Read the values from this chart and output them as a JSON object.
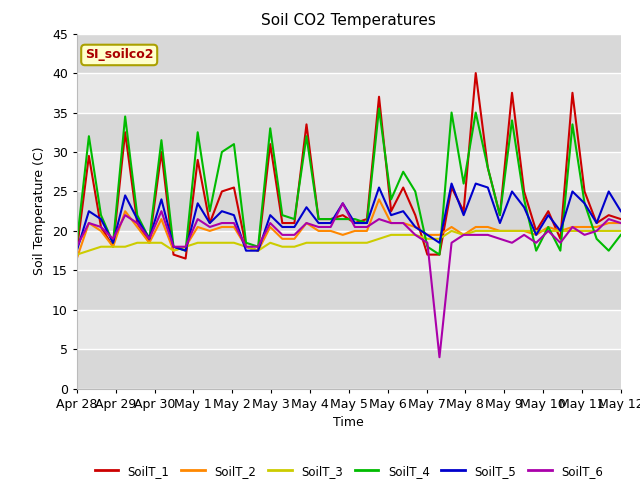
{
  "title": "Soil CO2 Temperatures",
  "xlabel": "Time",
  "ylabel": "Soil Temperature (C)",
  "ylim": [
    0,
    45
  ],
  "annotation_text": "SI_soilco2",
  "background_color": "#ffffff",
  "plot_bg_color": "#d8d8d8",
  "band_light_color": "#e8e8e8",
  "grid_line_color": "#ffffff",
  "series_colors": {
    "SoilT_1": "#cc0000",
    "SoilT_2": "#ff8800",
    "SoilT_3": "#cccc00",
    "SoilT_4": "#00bb00",
    "SoilT_5": "#0000cc",
    "SoilT_6": "#aa00aa"
  },
  "x_tick_labels": [
    "Apr 28",
    "Apr 29",
    "Apr 30",
    "May 1",
    "May 2",
    "May 3",
    "May 4",
    "May 5",
    "May 6",
    "May 7",
    "May 8",
    "May 9",
    "May 10",
    "May 11",
    "May 12"
  ],
  "x_tick_positions": [
    0,
    1,
    2,
    3,
    4,
    5,
    6,
    7,
    8,
    9,
    10,
    11,
    12,
    13,
    14
  ],
  "yticks": [
    0,
    5,
    10,
    15,
    20,
    25,
    30,
    35,
    40,
    45
  ],
  "SoilT_1": [
    17.5,
    29.5,
    20.5,
    18.0,
    32.5,
    21.0,
    18.5,
    30.0,
    17.0,
    16.5,
    29.0,
    21.0,
    25.0,
    25.5,
    18.0,
    17.5,
    31.0,
    21.0,
    21.0,
    33.5,
    21.5,
    21.5,
    22.0,
    21.0,
    21.5,
    37.0,
    22.5,
    25.5,
    22.0,
    17.0,
    17.0,
    25.5,
    22.5,
    40.0,
    28.0,
    22.0,
    37.5,
    25.0,
    20.0,
    22.5,
    19.0,
    37.5,
    25.0,
    21.0,
    22.0,
    21.5
  ],
  "SoilT_2": [
    16.5,
    21.0,
    20.0,
    18.0,
    22.5,
    20.5,
    18.5,
    21.5,
    17.5,
    18.0,
    20.5,
    20.0,
    20.5,
    20.5,
    18.0,
    17.5,
    20.5,
    19.0,
    19.0,
    21.0,
    20.0,
    20.0,
    19.5,
    20.0,
    20.0,
    24.0,
    21.0,
    21.0,
    20.5,
    19.5,
    19.5,
    20.5,
    19.5,
    20.5,
    20.5,
    20.0,
    20.0,
    20.0,
    19.5,
    20.5,
    20.0,
    20.5,
    20.5,
    20.5,
    21.0,
    21.0
  ],
  "SoilT_3": [
    17.0,
    17.5,
    18.0,
    18.0,
    18.0,
    18.5,
    18.5,
    18.5,
    17.5,
    18.0,
    18.5,
    18.5,
    18.5,
    18.5,
    18.0,
    17.5,
    18.5,
    18.0,
    18.0,
    18.5,
    18.5,
    18.5,
    18.5,
    18.5,
    18.5,
    19.0,
    19.5,
    19.5,
    19.5,
    19.0,
    19.0,
    20.0,
    19.5,
    20.0,
    20.0,
    20.0,
    20.0,
    20.0,
    20.0,
    20.0,
    20.0,
    20.0,
    20.0,
    20.0,
    20.0,
    20.0
  ],
  "SoilT_4": [
    18.5,
    32.0,
    22.0,
    18.5,
    34.5,
    22.0,
    19.0,
    31.5,
    18.0,
    17.5,
    32.5,
    22.5,
    30.0,
    31.0,
    18.5,
    18.0,
    33.0,
    22.0,
    21.5,
    32.0,
    21.5,
    21.5,
    21.5,
    21.5,
    21.0,
    35.5,
    24.0,
    27.5,
    25.0,
    18.0,
    17.0,
    35.0,
    26.0,
    35.0,
    28.0,
    22.0,
    34.0,
    24.0,
    17.5,
    20.5,
    17.5,
    33.5,
    23.5,
    19.0,
    17.5,
    19.5
  ],
  "SoilT_5": [
    17.5,
    22.5,
    21.5,
    18.5,
    24.5,
    21.5,
    19.0,
    24.0,
    18.0,
    17.5,
    23.5,
    21.0,
    22.5,
    22.0,
    17.5,
    17.5,
    22.0,
    20.5,
    20.5,
    23.0,
    21.0,
    21.0,
    23.5,
    21.0,
    21.0,
    25.5,
    22.0,
    22.5,
    20.5,
    19.5,
    18.5,
    26.0,
    22.0,
    26.0,
    25.5,
    21.0,
    25.0,
    23.0,
    19.5,
    22.0,
    20.0,
    25.0,
    23.5,
    21.0,
    25.0,
    22.5
  ],
  "SoilT_6": [
    18.0,
    21.0,
    20.5,
    19.0,
    22.0,
    21.0,
    19.0,
    22.5,
    18.0,
    18.0,
    21.5,
    20.5,
    21.0,
    21.0,
    18.0,
    18.0,
    21.0,
    19.5,
    19.5,
    21.0,
    20.5,
    20.5,
    23.5,
    20.5,
    20.5,
    21.5,
    21.0,
    21.0,
    19.5,
    18.5,
    4.0,
    18.5,
    19.5,
    19.5,
    19.5,
    19.0,
    18.5,
    19.5,
    18.5,
    20.0,
    18.5,
    20.5,
    19.5,
    20.0,
    21.5,
    21.0
  ]
}
